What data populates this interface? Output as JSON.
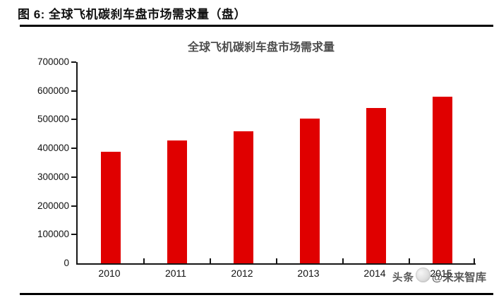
{
  "figure": {
    "caption": "图 6: 全球飞机碳刹车盘市场需求量（盘）"
  },
  "chart_data": {
    "type": "bar",
    "title": "全球飞机碳刹车盘市场需求量",
    "categories": [
      "2010",
      "2011",
      "2012",
      "2013",
      "2014",
      "2015"
    ],
    "values": [
      388000,
      427000,
      460000,
      504000,
      540000,
      579000
    ],
    "xlabel": "",
    "ylabel": "",
    "ylim": [
      0,
      700000
    ],
    "ytick_step": 100000,
    "ytick_labels": [
      "0",
      "100000",
      "200000",
      "300000",
      "400000",
      "500000",
      "600000",
      "700000"
    ],
    "bar_color": "#e00000",
    "axis_color": "#161616",
    "title_color": "#4d4d4d",
    "grid": false,
    "legend": null
  },
  "watermark": {
    "prefix": "头条",
    "logo_icon": "toutiao-circle-logo",
    "suffix": "@未来智库"
  }
}
